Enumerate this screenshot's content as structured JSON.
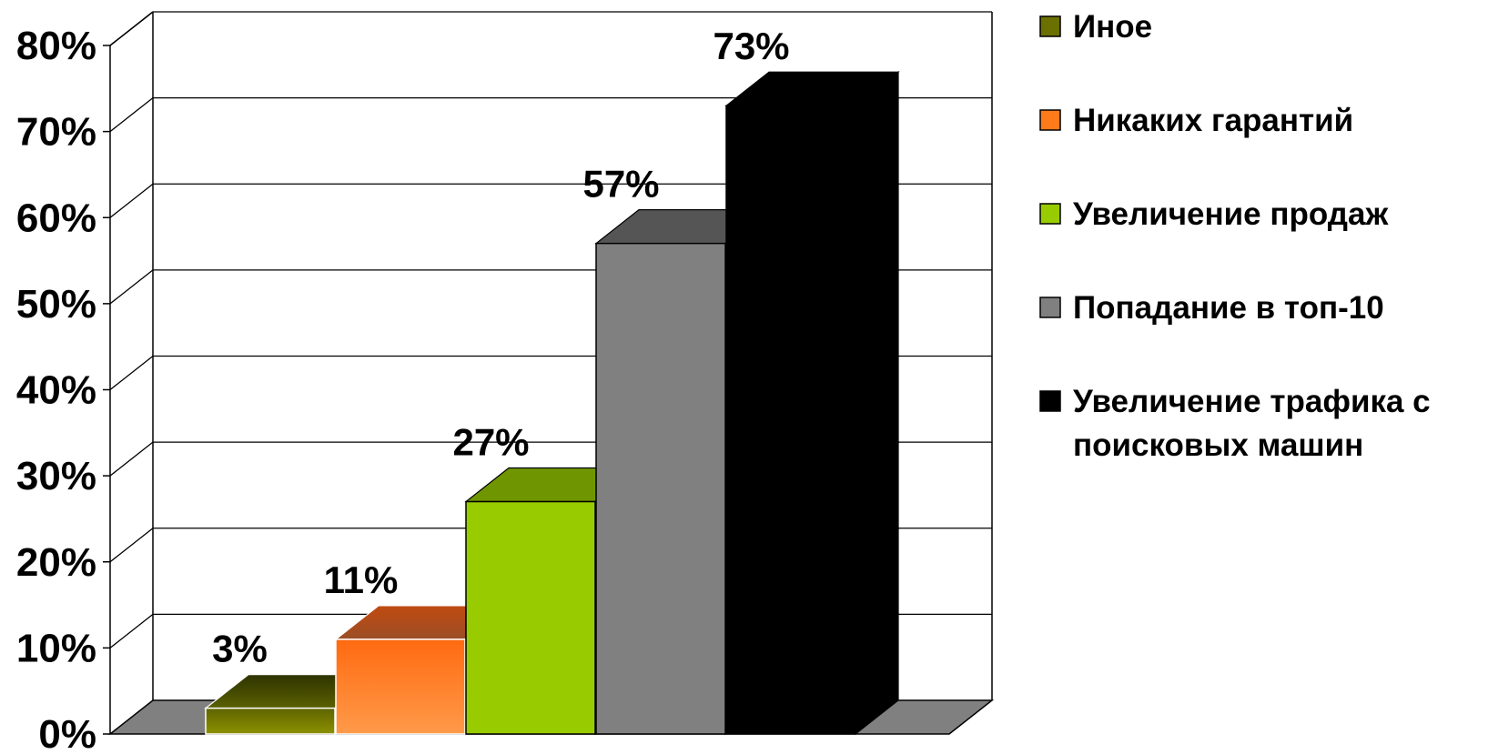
{
  "chart_data": {
    "type": "bar",
    "title": "",
    "xlabel": "",
    "ylabel": "",
    "ylim": [
      0,
      80
    ],
    "yticks": [
      "0%",
      "10%",
      "20%",
      "30%",
      "40%",
      "50%",
      "60%",
      "70%",
      "80%"
    ],
    "grid": true,
    "style": "3d",
    "legend_position": "right",
    "series": [
      {
        "name": "Иное",
        "value": 3,
        "label": "3%",
        "color": "#6b7000"
      },
      {
        "name": "Никаких гарантий",
        "value": 11,
        "label": "11%",
        "color": "#ff7a1a"
      },
      {
        "name": "Увеличение продаж",
        "value": 27,
        "label": "27%",
        "color": "#99cc00"
      },
      {
        "name": "Попадание в топ-10",
        "value": 57,
        "label": "57%",
        "color": "#808080"
      },
      {
        "name": "Увеличение трафика с поисковых машин",
        "legend_lines": [
          "Увеличение трафика с",
          "поисковых машин"
        ],
        "value": 73,
        "label": "73%",
        "color": "#000000"
      }
    ]
  }
}
